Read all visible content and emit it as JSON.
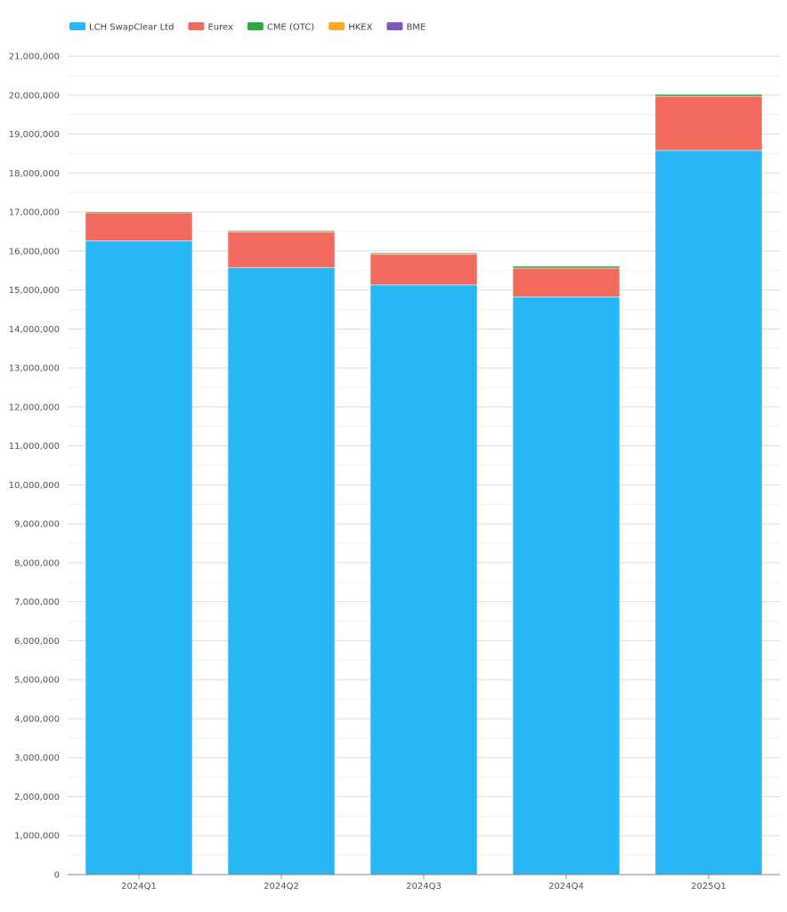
{
  "chart_data": {
    "type": "bar",
    "stacked": true,
    "title": "",
    "xlabel": "",
    "ylabel": "",
    "ylim": [
      0,
      21000000
    ],
    "y_tick_step": 1000000,
    "grid": true,
    "legend_position": "top-left",
    "categories": [
      "2024Q1",
      "2024Q2",
      "2024Q3",
      "2024Q4",
      "2025Q1"
    ],
    "series": [
      {
        "name": "LCH SwapClear Ltd",
        "color": "#29b6f6",
        "values": [
          16260000,
          15570000,
          15130000,
          14820000,
          18580000
        ]
      },
      {
        "name": "Eurex",
        "color": "#f26b5e",
        "values": [
          720000,
          920000,
          790000,
          740000,
          1390000
        ]
      },
      {
        "name": "CME (OTC)",
        "color": "#2eaa3a",
        "values": [
          30000,
          30000,
          30000,
          50000,
          50000
        ]
      },
      {
        "name": "HKEX",
        "color": "#ffa726",
        "values": [
          5000,
          5000,
          5000,
          5000,
          5000
        ]
      },
      {
        "name": "BME",
        "color": "#7e57c2",
        "values": [
          1000,
          1000,
          1000,
          1000,
          1000
        ]
      }
    ]
  }
}
